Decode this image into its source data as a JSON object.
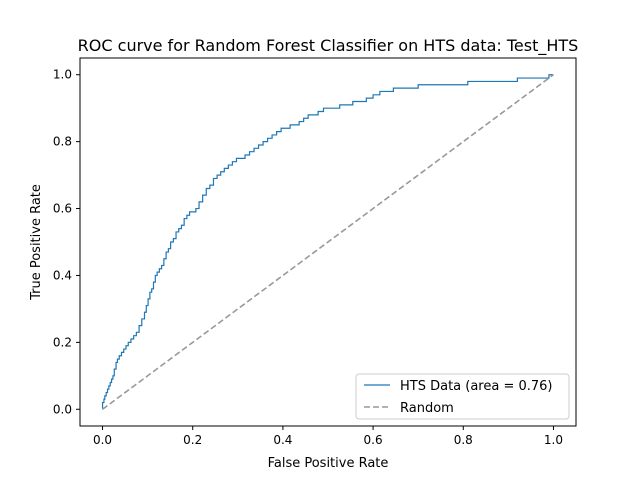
{
  "chart_data": {
    "type": "line",
    "title": "ROC curve for Random Forest Classifier on HTS data: Test_HTS",
    "xlabel": "False Positive Rate",
    "ylabel": "True Positive Rate",
    "xlim": [
      -0.05,
      1.05
    ],
    "ylim": [
      -0.05,
      1.05
    ],
    "xticks": [
      "0.0",
      "0.2",
      "0.4",
      "0.6",
      "0.8",
      "1.0"
    ],
    "yticks": [
      "0.0",
      "0.2",
      "0.4",
      "0.6",
      "0.8",
      "1.0"
    ],
    "grid": false,
    "legend_position": "lower right",
    "series": [
      {
        "name": "HTS Data (area = 0.76)",
        "color": "#1f77b4",
        "style": "step",
        "x": [
          0.0,
          0.0,
          0.003,
          0.005,
          0.008,
          0.011,
          0.014,
          0.017,
          0.02,
          0.023,
          0.026,
          0.03,
          0.033,
          0.037,
          0.042,
          0.047,
          0.052,
          0.057,
          0.063,
          0.069,
          0.075,
          0.081,
          0.087,
          0.093,
          0.097,
          0.101,
          0.105,
          0.109,
          0.113,
          0.117,
          0.121,
          0.126,
          0.131,
          0.136,
          0.141,
          0.146,
          0.151,
          0.157,
          0.163,
          0.169,
          0.175,
          0.181,
          0.187,
          0.193,
          0.2,
          0.207,
          0.214,
          0.222,
          0.23,
          0.238,
          0.246,
          0.254,
          0.262,
          0.27,
          0.279,
          0.288,
          0.297,
          0.306,
          0.316,
          0.326,
          0.336,
          0.346,
          0.356,
          0.366,
          0.376,
          0.386,
          0.396,
          0.406,
          0.416,
          0.426,
          0.436,
          0.446,
          0.456,
          0.466,
          0.478,
          0.49,
          0.502,
          0.514,
          0.526,
          0.54,
          0.555,
          0.57,
          0.585,
          0.6,
          0.615,
          0.63,
          0.645,
          0.66,
          0.68,
          0.7,
          0.72,
          0.75,
          0.78,
          0.81,
          0.84,
          0.87,
          0.9,
          0.92,
          0.94,
          0.96,
          0.98,
          0.99,
          1.0
        ],
        "y": [
          0.0,
          0.02,
          0.03,
          0.04,
          0.05,
          0.06,
          0.07,
          0.08,
          0.09,
          0.1,
          0.12,
          0.14,
          0.15,
          0.16,
          0.17,
          0.18,
          0.19,
          0.2,
          0.21,
          0.22,
          0.23,
          0.25,
          0.27,
          0.29,
          0.31,
          0.33,
          0.35,
          0.36,
          0.38,
          0.4,
          0.41,
          0.42,
          0.43,
          0.45,
          0.47,
          0.48,
          0.5,
          0.51,
          0.53,
          0.54,
          0.55,
          0.57,
          0.58,
          0.59,
          0.59,
          0.6,
          0.62,
          0.64,
          0.66,
          0.67,
          0.69,
          0.7,
          0.71,
          0.72,
          0.73,
          0.74,
          0.75,
          0.75,
          0.76,
          0.77,
          0.78,
          0.79,
          0.8,
          0.81,
          0.82,
          0.83,
          0.84,
          0.84,
          0.85,
          0.85,
          0.86,
          0.87,
          0.88,
          0.88,
          0.89,
          0.9,
          0.9,
          0.9,
          0.91,
          0.91,
          0.92,
          0.92,
          0.93,
          0.94,
          0.95,
          0.95,
          0.96,
          0.96,
          0.96,
          0.97,
          0.97,
          0.97,
          0.97,
          0.98,
          0.98,
          0.98,
          0.98,
          0.99,
          0.99,
          0.99,
          0.99,
          1.0,
          1.0
        ]
      },
      {
        "name": "Random",
        "color": "#999999",
        "style": "dashed",
        "x": [
          0.0,
          1.0
        ],
        "y": [
          0.0,
          1.0
        ]
      }
    ]
  }
}
